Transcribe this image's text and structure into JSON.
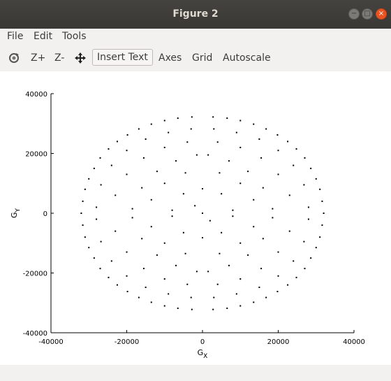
{
  "window": {
    "title": "Figure 2"
  },
  "menu": {
    "file": "File",
    "edit": "Edit",
    "tools": "Tools"
  },
  "toolbar": {
    "zoom_in": "Z+",
    "zoom_out": "Z-",
    "insert_text": "Insert Text",
    "axes": "Axes",
    "grid": "Grid",
    "autoscale": "Autoscale"
  },
  "chart_data": {
    "type": "scatter",
    "xlabel": "G",
    "xlabel_sub": "X",
    "ylabel": "G",
    "ylabel_sub": "Y",
    "xlim": [
      -40000,
      40000
    ],
    "ylim": [
      -40000,
      40000
    ],
    "xticks": [
      -40000,
      -20000,
      0,
      20000,
      40000
    ],
    "yticks": [
      -40000,
      -20000,
      0,
      20000,
      40000
    ],
    "xtick_labels": [
      "-40000",
      "-20000",
      "0",
      "20000",
      "40000"
    ],
    "ytick_labels": [
      "-40000",
      "-20000",
      "0",
      "20000",
      "40000"
    ],
    "grid": false,
    "marker_color": "#000000",
    "points": [
      [
        -32000,
        0
      ],
      [
        -31600,
        4000
      ],
      [
        -31600,
        -4000
      ],
      [
        -31000,
        8000
      ],
      [
        -31000,
        -8000
      ],
      [
        -30000,
        11500
      ],
      [
        -30000,
        -11500
      ],
      [
        -28600,
        15000
      ],
      [
        -28600,
        -15000
      ],
      [
        -27000,
        18500
      ],
      [
        -27000,
        -18500
      ],
      [
        -24800,
        21500
      ],
      [
        -24800,
        -21500
      ],
      [
        -22500,
        24000
      ],
      [
        -22500,
        -24000
      ],
      [
        -19800,
        26200
      ],
      [
        -19800,
        -26200
      ],
      [
        -16800,
        28200
      ],
      [
        -16800,
        -28200
      ],
      [
        -13500,
        29800
      ],
      [
        -13500,
        -29800
      ],
      [
        -10000,
        31000
      ],
      [
        -10000,
        -31000
      ],
      [
        -6500,
        31800
      ],
      [
        -6500,
        -31800
      ],
      [
        -2800,
        32200
      ],
      [
        -2800,
        -32200
      ],
      [
        32000,
        0
      ],
      [
        31600,
        4000
      ],
      [
        31600,
        -4000
      ],
      [
        31000,
        8000
      ],
      [
        31000,
        -8000
      ],
      [
        30000,
        11500
      ],
      [
        30000,
        -11500
      ],
      [
        28600,
        15000
      ],
      [
        28600,
        -15000
      ],
      [
        27000,
        18500
      ],
      [
        27000,
        -18500
      ],
      [
        24800,
        21500
      ],
      [
        24800,
        -21500
      ],
      [
        22500,
        24000
      ],
      [
        22500,
        -24000
      ],
      [
        19800,
        26200
      ],
      [
        19800,
        -26200
      ],
      [
        16800,
        28200
      ],
      [
        16800,
        -28200
      ],
      [
        13500,
        29800
      ],
      [
        13500,
        -29800
      ],
      [
        10000,
        31000
      ],
      [
        10000,
        -31000
      ],
      [
        6500,
        31800
      ],
      [
        6500,
        -31800
      ],
      [
        2800,
        32200
      ],
      [
        2800,
        -32200
      ],
      [
        -28000,
        2000
      ],
      [
        -28000,
        -2000
      ],
      [
        -26800,
        9500
      ],
      [
        -26800,
        -9500
      ],
      [
        -24000,
        16000
      ],
      [
        -24000,
        -16000
      ],
      [
        -20000,
        21000
      ],
      [
        -20000,
        -21000
      ],
      [
        -15000,
        24800
      ],
      [
        -15000,
        -24800
      ],
      [
        -9000,
        27000
      ],
      [
        -9000,
        -27000
      ],
      [
        -3000,
        28200
      ],
      [
        -3000,
        -28200
      ],
      [
        28000,
        2000
      ],
      [
        28000,
        -2000
      ],
      [
        26800,
        9500
      ],
      [
        26800,
        -9500
      ],
      [
        24000,
        16000
      ],
      [
        24000,
        -16000
      ],
      [
        20000,
        21000
      ],
      [
        20000,
        -21000
      ],
      [
        15000,
        24800
      ],
      [
        15000,
        -24800
      ],
      [
        9000,
        27000
      ],
      [
        9000,
        -27000
      ],
      [
        3000,
        28200
      ],
      [
        3000,
        -28200
      ],
      [
        -23000,
        6000
      ],
      [
        -23000,
        -6000
      ],
      [
        -20000,
        13000
      ],
      [
        -20000,
        -13000
      ],
      [
        -15500,
        18500
      ],
      [
        -15500,
        -18500
      ],
      [
        -10000,
        22000
      ],
      [
        -10000,
        -22000
      ],
      [
        -4000,
        23800
      ],
      [
        -4000,
        -23800
      ],
      [
        23000,
        6000
      ],
      [
        23000,
        -6000
      ],
      [
        20000,
        13000
      ],
      [
        20000,
        -13000
      ],
      [
        15500,
        18500
      ],
      [
        15500,
        -18500
      ],
      [
        10000,
        22000
      ],
      [
        10000,
        -22000
      ],
      [
        4000,
        23800
      ],
      [
        4000,
        -23800
      ],
      [
        -18500,
        1500
      ],
      [
        -18500,
        -1500
      ],
      [
        -16000,
        8500
      ],
      [
        -16000,
        -8500
      ],
      [
        -12000,
        14000
      ],
      [
        -12000,
        -14000
      ],
      [
        -7000,
        17500
      ],
      [
        -7000,
        -17500
      ],
      [
        -1500,
        19500
      ],
      [
        -1500,
        -19500
      ],
      [
        18500,
        1500
      ],
      [
        18500,
        -1500
      ],
      [
        16000,
        8500
      ],
      [
        16000,
        -8500
      ],
      [
        12000,
        14000
      ],
      [
        12000,
        -14000
      ],
      [
        7000,
        17500
      ],
      [
        7000,
        -17500
      ],
      [
        1500,
        19500
      ],
      [
        1500,
        -19500
      ],
      [
        -13500,
        4500
      ],
      [
        -13500,
        -4500
      ],
      [
        -10000,
        10000
      ],
      [
        -10000,
        -10000
      ],
      [
        -4500,
        13500
      ],
      [
        -4500,
        -13500
      ],
      [
        13500,
        4500
      ],
      [
        13500,
        -4500
      ],
      [
        10000,
        10000
      ],
      [
        10000,
        -10000
      ],
      [
        4500,
        13500
      ],
      [
        4500,
        -13500
      ],
      [
        -8000,
        1000
      ],
      [
        -8000,
        -1000
      ],
      [
        -5000,
        6500
      ],
      [
        -5000,
        -6500
      ],
      [
        0,
        8200
      ],
      [
        0,
        -8200
      ],
      [
        8000,
        1000
      ],
      [
        8000,
        -1000
      ],
      [
        5000,
        6500
      ],
      [
        5000,
        -6500
      ],
      [
        -2000,
        2500
      ],
      [
        2000,
        -2500
      ],
      [
        0,
        0
      ]
    ]
  }
}
